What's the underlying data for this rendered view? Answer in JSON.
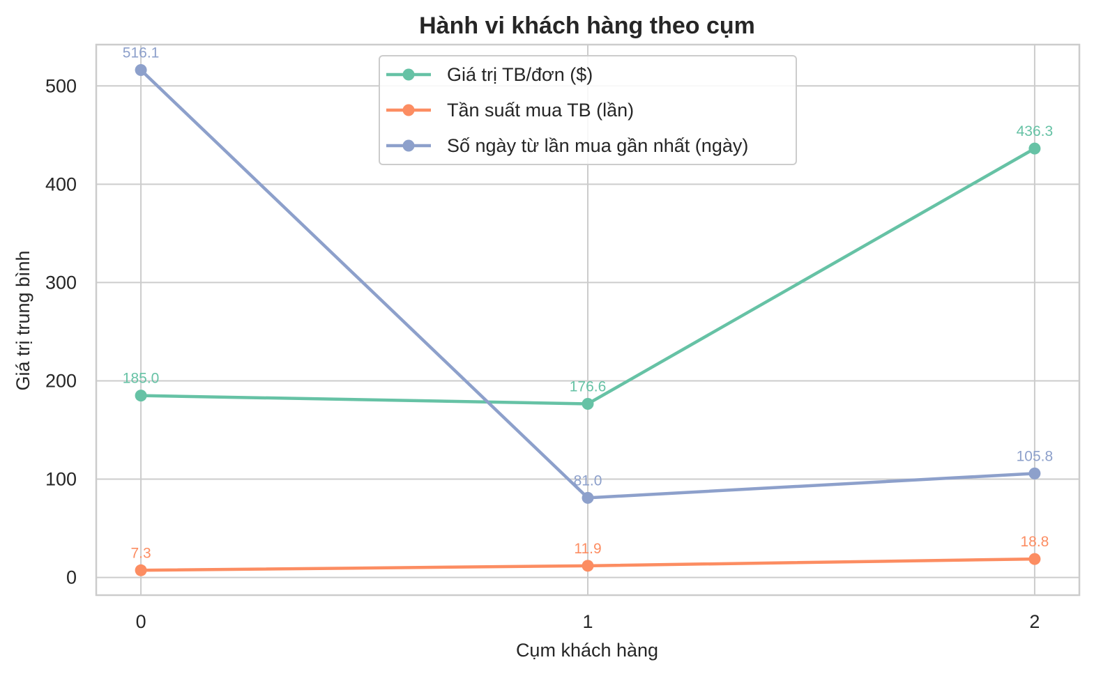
{
  "chart_data": {
    "type": "line",
    "title": "Hành vi khách hàng theo cụm",
    "xlabel": "Cụm khách hàng",
    "ylabel": "Giá trị trung bình",
    "x": [
      0,
      1,
      2
    ],
    "x_tick_labels": [
      "0",
      "1",
      "2"
    ],
    "y_ticks": [
      0,
      100,
      200,
      300,
      400,
      500
    ],
    "y_tick_labels": [
      "0",
      "100",
      "200",
      "300",
      "400",
      "500"
    ],
    "xlim": [
      -0.1,
      2.1
    ],
    "ylim": [
      -18,
      542
    ],
    "grid": true,
    "legend_position": "top-center",
    "series": [
      {
        "name": "Giá trị TB/đơn ($)",
        "color": "#66c2a5",
        "values": [
          185.0,
          176.6,
          436.3
        ],
        "labels": [
          "185.0",
          "176.6",
          "436.3"
        ]
      },
      {
        "name": "Tần suất mua TB (lần)",
        "color": "#fc8d62",
        "values": [
          7.3,
          11.9,
          18.8
        ],
        "labels": [
          "7.3",
          "11.9",
          "18.8"
        ]
      },
      {
        "name": "Số ngày từ lần mua gần nhất (ngày)",
        "color": "#8da0cb",
        "values": [
          516.1,
          81.0,
          105.8
        ],
        "labels": [
          "516.1",
          "81.0",
          "105.8"
        ]
      }
    ]
  }
}
